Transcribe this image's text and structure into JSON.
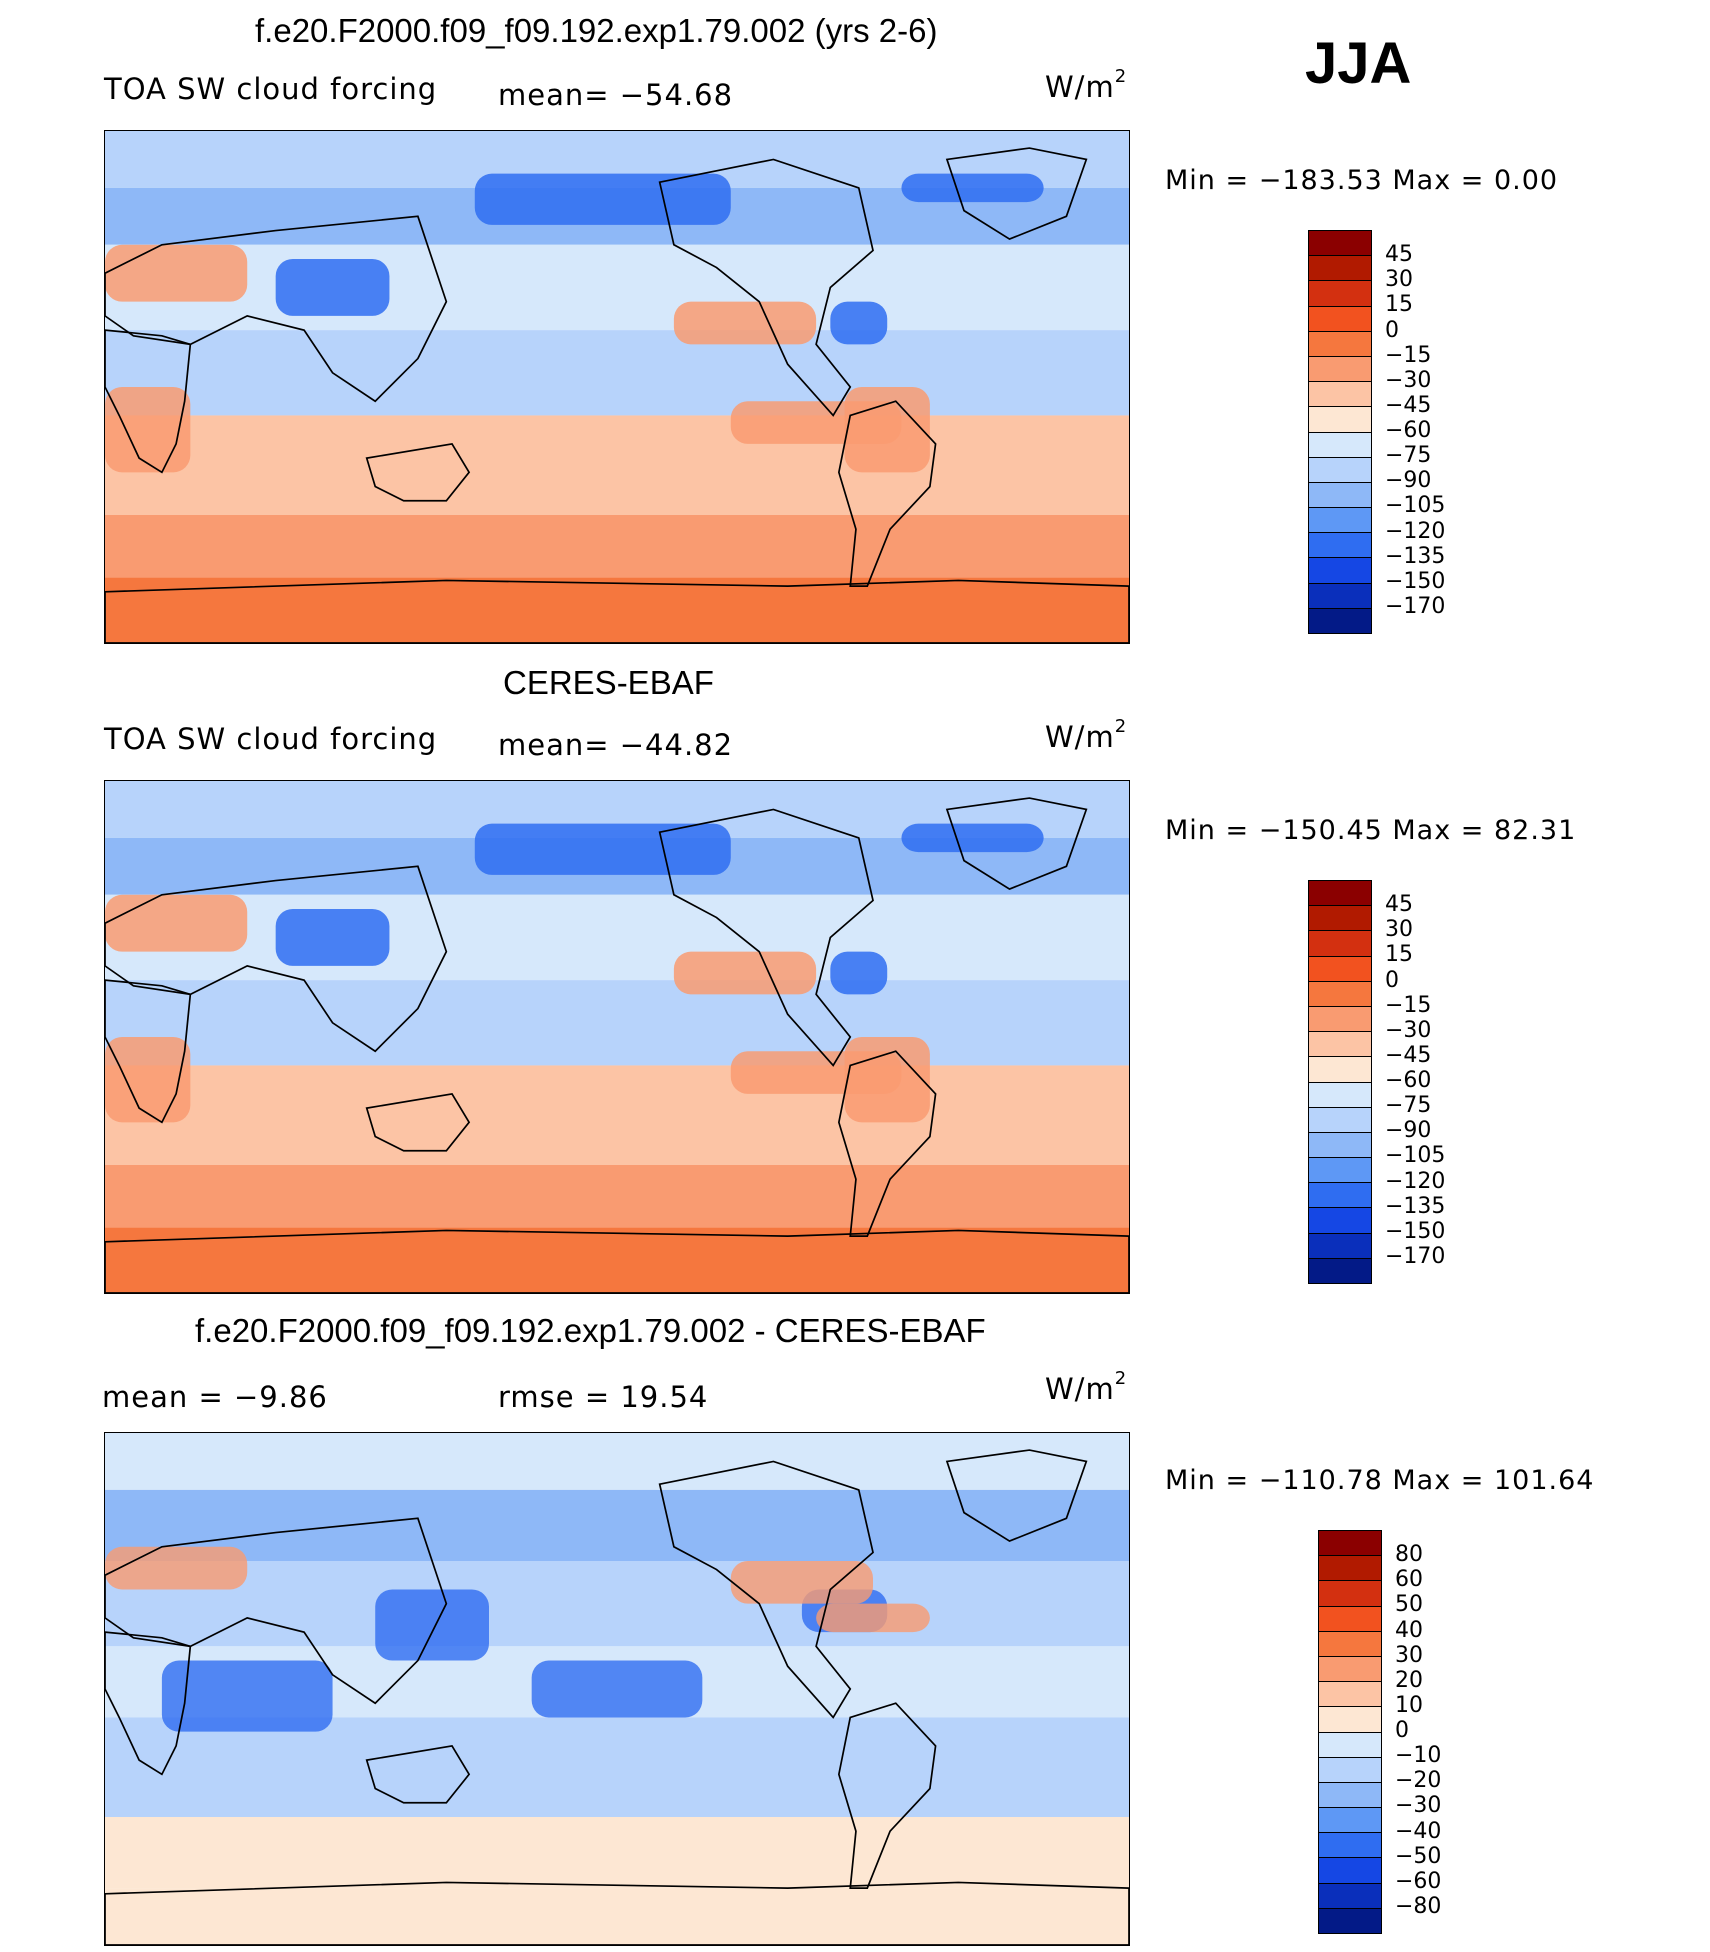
{
  "season": "JJA",
  "palettes": {
    "abs": [
      "#8b0000",
      "#b11a00",
      "#d33010",
      "#f2521f",
      "#f5773e",
      "#f99b71",
      "#fcc4a5",
      "#fde7d3",
      "#d6e8fb",
      "#b7d3fb",
      "#8eb8f7",
      "#5e98f5",
      "#2f6df1",
      "#1547e4",
      "#0a2fbb",
      "#031a87"
    ],
    "diff": [
      "#8b0000",
      "#b11a00",
      "#d33010",
      "#f2521f",
      "#f5773e",
      "#f99b71",
      "#fcc4a5",
      "#fde7d3",
      "#d6e8fb",
      "#b7d3fb",
      "#8eb8f7",
      "#5e98f5",
      "#2f6df1",
      "#1547e4",
      "#0a2fbb",
      "#031a87"
    ]
  },
  "panels": [
    {
      "title": "f.e20.F2000.f09_f09.192.exp1.79.002 (yrs 2-6)",
      "left_label": "TOA SW cloud forcing",
      "mid_label": "mean=  −54.68",
      "units": "W/m",
      "units_sup": "2",
      "minmax": "Min  =  −183.53  Max  =     0.00",
      "colorbar_labels": [
        "45",
        "30",
        "15",
        "0",
        "−15",
        "−30",
        "−45",
        "−60",
        "−75",
        "−90",
        "−105",
        "−120",
        "−135",
        "−150",
        "−170"
      ],
      "field": "model"
    },
    {
      "title": "CERES-EBAF",
      "left_label": "TOA SW cloud forcing",
      "mid_label": "mean=  −44.82",
      "units": "W/m",
      "units_sup": "2",
      "minmax": "Min  =  −150.45  Max  =   82.31",
      "colorbar_labels": [
        "45",
        "30",
        "15",
        "0",
        "−15",
        "−30",
        "−45",
        "−60",
        "−75",
        "−90",
        "−105",
        "−120",
        "−135",
        "−150",
        "−170"
      ],
      "field": "obs"
    },
    {
      "title": "f.e20.F2000.f09_f09.192.exp1.79.002 - CERES-EBAF",
      "left_label": "mean  =    −9.86",
      "mid_label": "rmse  =    19.54",
      "units": "W/m",
      "units_sup": "2",
      "minmax": "Min  =  −110.78  Max  =  101.64",
      "colorbar_labels": [
        "80",
        "60",
        "50",
        "40",
        "30",
        "20",
        "10",
        "0",
        "−10",
        "−20",
        "−30",
        "−40",
        "−50",
        "−60",
        "−80"
      ],
      "field": "diff"
    }
  ]
}
